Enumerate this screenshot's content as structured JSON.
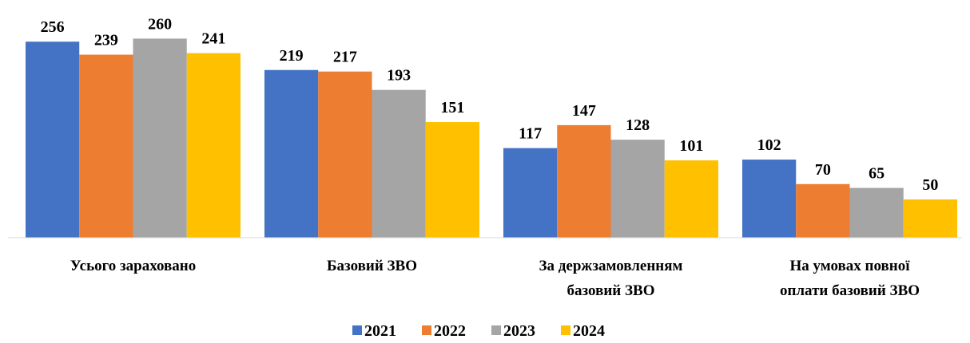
{
  "chart_data": {
    "type": "bar",
    "categories": [
      "Усього зараховано",
      "Базовий ЗВО",
      "За держзамовленням\nбазовий ЗВО",
      "На умовах повної\nоплати базовий ЗВО"
    ],
    "series": [
      {
        "name": "2021",
        "color": "#4472c4",
        "values": [
          256,
          219,
          117,
          102
        ]
      },
      {
        "name": "2022",
        "color": "#ed7d31",
        "values": [
          239,
          217,
          147,
          70
        ]
      },
      {
        "name": "2023",
        "color": "#a5a5a5",
        "values": [
          260,
          193,
          128,
          65
        ]
      },
      {
        "name": "2024",
        "color": "#ffc000",
        "values": [
          241,
          151,
          101,
          50
        ]
      }
    ],
    "ylim": [
      0,
      300
    ],
    "legend": "bottom"
  }
}
